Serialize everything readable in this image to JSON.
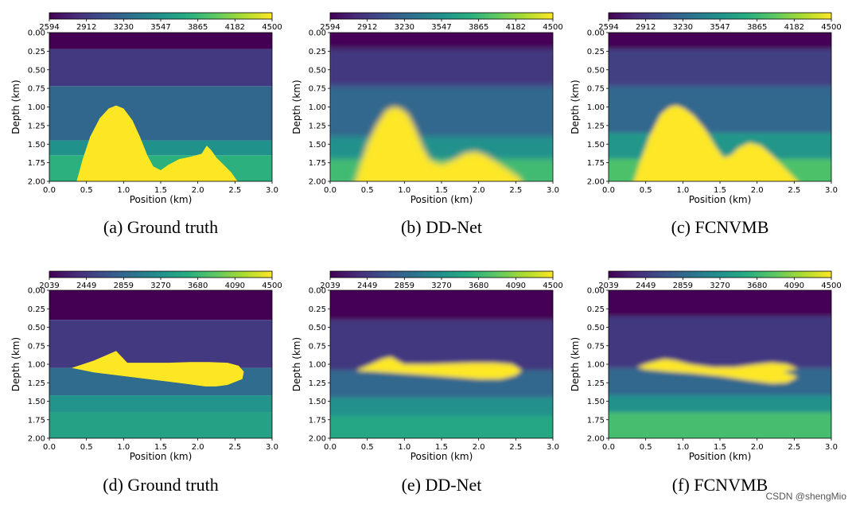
{
  "colors": {
    "viridis": [
      "#440154",
      "#472d7b",
      "#3b528b",
      "#2c728e",
      "#21918c",
      "#28ae80",
      "#5ec962",
      "#addc30",
      "#fde725"
    ]
  },
  "watermark": "CSDN @shengMio",
  "chart_data": [
    {
      "id": "a",
      "type": "heatmap",
      "caption": "(a)  Ground truth",
      "colorbar_ticks": [
        "2594",
        "2912",
        "3230",
        "3547",
        "3865",
        "4182",
        "4500"
      ],
      "vmin": 2594,
      "vmax": 4500,
      "xlabel": "Position (km)",
      "ylabel": "Depth (km)",
      "xticks": [
        "0.0",
        "0.5",
        "1.0",
        "1.5",
        "2.0",
        "2.5",
        "3.0"
      ],
      "yticks": [
        "0.00",
        "0.25",
        "0.50",
        "0.75",
        "1.00",
        "1.25",
        "1.50",
        "1.75",
        "2.00"
      ],
      "xlim": [
        0,
        3
      ],
      "ylim": [
        0,
        2
      ],
      "blur": 0,
      "layers": [
        {
          "top": 0.0,
          "value": 2594
        },
        {
          "top": 0.22,
          "value": 2912
        },
        {
          "top": 0.72,
          "value": 3230
        },
        {
          "top": 1.45,
          "value": 3547
        },
        {
          "top": 1.65,
          "value": 3800
        }
      ],
      "body": {
        "value": 4500,
        "x": [
          0.35,
          0.45,
          0.55,
          0.68,
          0.8,
          0.9,
          1.0,
          1.12,
          1.22,
          1.32,
          1.4,
          1.5,
          1.6,
          1.75,
          1.9,
          2.05,
          2.12,
          2.18,
          2.25,
          2.35,
          2.45,
          2.58
        ],
        "y": [
          2.0,
          1.7,
          1.4,
          1.15,
          1.02,
          0.98,
          1.02,
          1.18,
          1.4,
          1.65,
          1.8,
          1.85,
          1.78,
          1.7,
          1.67,
          1.63,
          1.52,
          1.58,
          1.68,
          1.78,
          1.88,
          2.0
        ]
      }
    },
    {
      "id": "b",
      "type": "heatmap",
      "caption": "(b)  DD-Net",
      "colorbar_ticks": [
        "2594",
        "2912",
        "3230",
        "3547",
        "3865",
        "4182",
        "4500"
      ],
      "vmin": 2594,
      "vmax": 4500,
      "xlabel": "Position (km)",
      "ylabel": "Depth (km)",
      "xticks": [
        "0.0",
        "0.5",
        "1.0",
        "1.5",
        "2.0",
        "2.5",
        "3.0"
      ],
      "yticks": [
        "0.00",
        "0.25",
        "0.50",
        "0.75",
        "1.00",
        "1.25",
        "1.50",
        "1.75",
        "2.00"
      ],
      "xlim": [
        0,
        3
      ],
      "ylim": [
        0,
        2
      ],
      "blur": 4,
      "layers": [
        {
          "top": 0.0,
          "value": 2594
        },
        {
          "top": 0.22,
          "value": 2912
        },
        {
          "top": 0.72,
          "value": 3230
        },
        {
          "top": 1.4,
          "value": 3547
        },
        {
          "top": 1.7,
          "value": 3900
        }
      ],
      "body": {
        "value": 4500,
        "x": [
          0.32,
          0.4,
          0.5,
          0.62,
          0.75,
          0.85,
          0.95,
          1.05,
          1.15,
          1.25,
          1.35,
          1.5,
          1.65,
          1.8,
          1.95,
          2.1,
          2.25,
          2.4,
          2.55,
          2.6
        ],
        "y": [
          2.0,
          1.8,
          1.5,
          1.25,
          1.05,
          1.0,
          1.02,
          1.1,
          1.3,
          1.55,
          1.72,
          1.78,
          1.72,
          1.63,
          1.6,
          1.65,
          1.75,
          1.85,
          1.95,
          2.0
        ]
      }
    },
    {
      "id": "c",
      "type": "heatmap",
      "caption": "(c)  FCNVMB",
      "colorbar_ticks": [
        "2594",
        "2912",
        "3230",
        "3547",
        "3865",
        "4182",
        "4500"
      ],
      "vmin": 2594,
      "vmax": 4500,
      "xlabel": "Position (km)",
      "ylabel": "Depth (km)",
      "xticks": [
        "0.0",
        "0.5",
        "1.0",
        "1.5",
        "2.0",
        "2.5",
        "3.0"
      ],
      "yticks": [
        "0.00",
        "0.25",
        "0.50",
        "0.75",
        "1.00",
        "1.25",
        "1.50",
        "1.75",
        "2.00"
      ],
      "xlim": [
        0,
        3
      ],
      "ylim": [
        0,
        2
      ],
      "blur": 3,
      "layers": [
        {
          "top": 0.0,
          "value": 2594
        },
        {
          "top": 0.22,
          "value": 2950
        },
        {
          "top": 0.72,
          "value": 3230
        },
        {
          "top": 1.35,
          "value": 3600
        },
        {
          "top": 1.7,
          "value": 3950
        }
      ],
      "body": {
        "value": 4500,
        "x": [
          0.32,
          0.42,
          0.55,
          0.7,
          0.82,
          0.92,
          1.02,
          1.15,
          1.3,
          1.45,
          1.55,
          1.65,
          1.75,
          1.9,
          2.05,
          2.2,
          2.35,
          2.5,
          2.6
        ],
        "y": [
          2.0,
          1.75,
          1.4,
          1.1,
          1.0,
          0.98,
          1.02,
          1.12,
          1.3,
          1.55,
          1.68,
          1.65,
          1.55,
          1.48,
          1.52,
          1.65,
          1.8,
          1.95,
          2.0
        ]
      }
    },
    {
      "id": "d",
      "type": "heatmap",
      "caption": "(d)  Ground truth",
      "colorbar_ticks": [
        "2039",
        "2449",
        "2859",
        "3270",
        "3680",
        "4090",
        "4500"
      ],
      "vmin": 2039,
      "vmax": 4500,
      "xlabel": "Position (km)",
      "ylabel": "Depth (km)",
      "xticks": [
        "0.0",
        "0.5",
        "1.0",
        "1.5",
        "2.0",
        "2.5",
        "3.0"
      ],
      "yticks": [
        "0.00",
        "0.25",
        "0.50",
        "0.75",
        "1.00",
        "1.25",
        "1.50",
        "1.75",
        "2.00"
      ],
      "xlim": [
        0,
        3
      ],
      "ylim": [
        0,
        2
      ],
      "blur": 0,
      "layers": [
        {
          "top": 0.0,
          "value": 2039
        },
        {
          "top": 0.4,
          "value": 2449
        },
        {
          "top": 1.05,
          "value": 2900
        },
        {
          "top": 1.42,
          "value": 3300
        },
        {
          "top": 1.65,
          "value": 3450
        }
      ],
      "body": {
        "value": 4500,
        "x": [
          0.3,
          0.6,
          0.9,
          1.05,
          1.3,
          1.6,
          1.9,
          2.15,
          2.4,
          2.55,
          2.62,
          2.6,
          2.4,
          2.25,
          2.1,
          1.8,
          1.4,
          1.0,
          0.6,
          0.3
        ],
        "y": [
          1.05,
          0.95,
          0.82,
          0.98,
          0.98,
          0.98,
          0.97,
          0.97,
          0.98,
          1.02,
          1.1,
          1.2,
          1.28,
          1.3,
          1.3,
          1.26,
          1.21,
          1.16,
          1.11,
          1.05
        ]
      }
    },
    {
      "id": "e",
      "type": "heatmap",
      "caption": "(e)  DD-Net",
      "colorbar_ticks": [
        "2039",
        "2449",
        "2859",
        "3270",
        "3680",
        "4090",
        "4500"
      ],
      "vmin": 2039,
      "vmax": 4500,
      "xlabel": "Position (km)",
      "ylabel": "Depth (km)",
      "xticks": [
        "0.0",
        "0.5",
        "1.0",
        "1.5",
        "2.0",
        "2.5",
        "3.0"
      ],
      "yticks": [
        "0.00",
        "0.25",
        "0.50",
        "0.75",
        "1.00",
        "1.25",
        "1.50",
        "1.75",
        "2.00"
      ],
      "xlim": [
        0,
        3
      ],
      "ylim": [
        0,
        2
      ],
      "blur": 3,
      "layers": [
        {
          "top": 0.0,
          "value": 2039
        },
        {
          "top": 0.4,
          "value": 2449
        },
        {
          "top": 1.08,
          "value": 2859
        },
        {
          "top": 1.45,
          "value": 3270
        },
        {
          "top": 1.7,
          "value": 3500
        }
      ],
      "body": {
        "value": 4500,
        "x": [
          0.35,
          0.5,
          0.7,
          0.82,
          0.9,
          1.0,
          1.3,
          1.6,
          1.9,
          2.2,
          2.45,
          2.58,
          2.5,
          2.3,
          2.0,
          1.6,
          1.2,
          0.9,
          0.6,
          0.4
        ],
        "y": [
          1.08,
          1.02,
          0.93,
          0.9,
          0.95,
          1.0,
          1.0,
          0.99,
          0.98,
          0.98,
          1.0,
          1.08,
          1.15,
          1.2,
          1.2,
          1.17,
          1.14,
          1.12,
          1.1,
          1.09
        ]
      }
    },
    {
      "id": "f",
      "type": "heatmap",
      "caption": "(f)  FCNVMB",
      "colorbar_ticks": [
        "2039",
        "2449",
        "2859",
        "3270",
        "3680",
        "4090",
        "4500"
      ],
      "vmin": 2039,
      "vmax": 4500,
      "xlabel": "Position (km)",
      "ylabel": "Depth (km)",
      "xticks": [
        "0.0",
        "0.5",
        "1.0",
        "1.5",
        "2.0",
        "2.5",
        "3.0"
      ],
      "yticks": [
        "0.00",
        "0.25",
        "0.50",
        "0.75",
        "1.00",
        "1.25",
        "1.50",
        "1.75",
        "2.00"
      ],
      "xlim": [
        0,
        3
      ],
      "ylim": [
        0,
        2
      ],
      "blur": 3,
      "layers": [
        {
          "top": 0.0,
          "value": 2039
        },
        {
          "top": 0.35,
          "value": 2449
        },
        {
          "top": 1.05,
          "value": 2859
        },
        {
          "top": 1.42,
          "value": 3270
        },
        {
          "top": 1.65,
          "value": 3750
        }
      ],
      "body": {
        "value": 4500,
        "x": [
          0.38,
          0.55,
          0.75,
          0.9,
          1.1,
          1.4,
          1.7,
          2.0,
          2.2,
          2.4,
          2.55,
          2.35,
          2.55,
          2.4,
          2.2,
          1.9,
          1.5,
          1.1,
          0.8,
          0.5
        ],
        "y": [
          1.04,
          0.98,
          0.93,
          0.95,
          1.0,
          1.04,
          1.04,
          1.0,
          0.98,
          1.0,
          1.06,
          1.1,
          1.17,
          1.25,
          1.26,
          1.22,
          1.16,
          1.12,
          1.1,
          1.07
        ]
      }
    }
  ]
}
